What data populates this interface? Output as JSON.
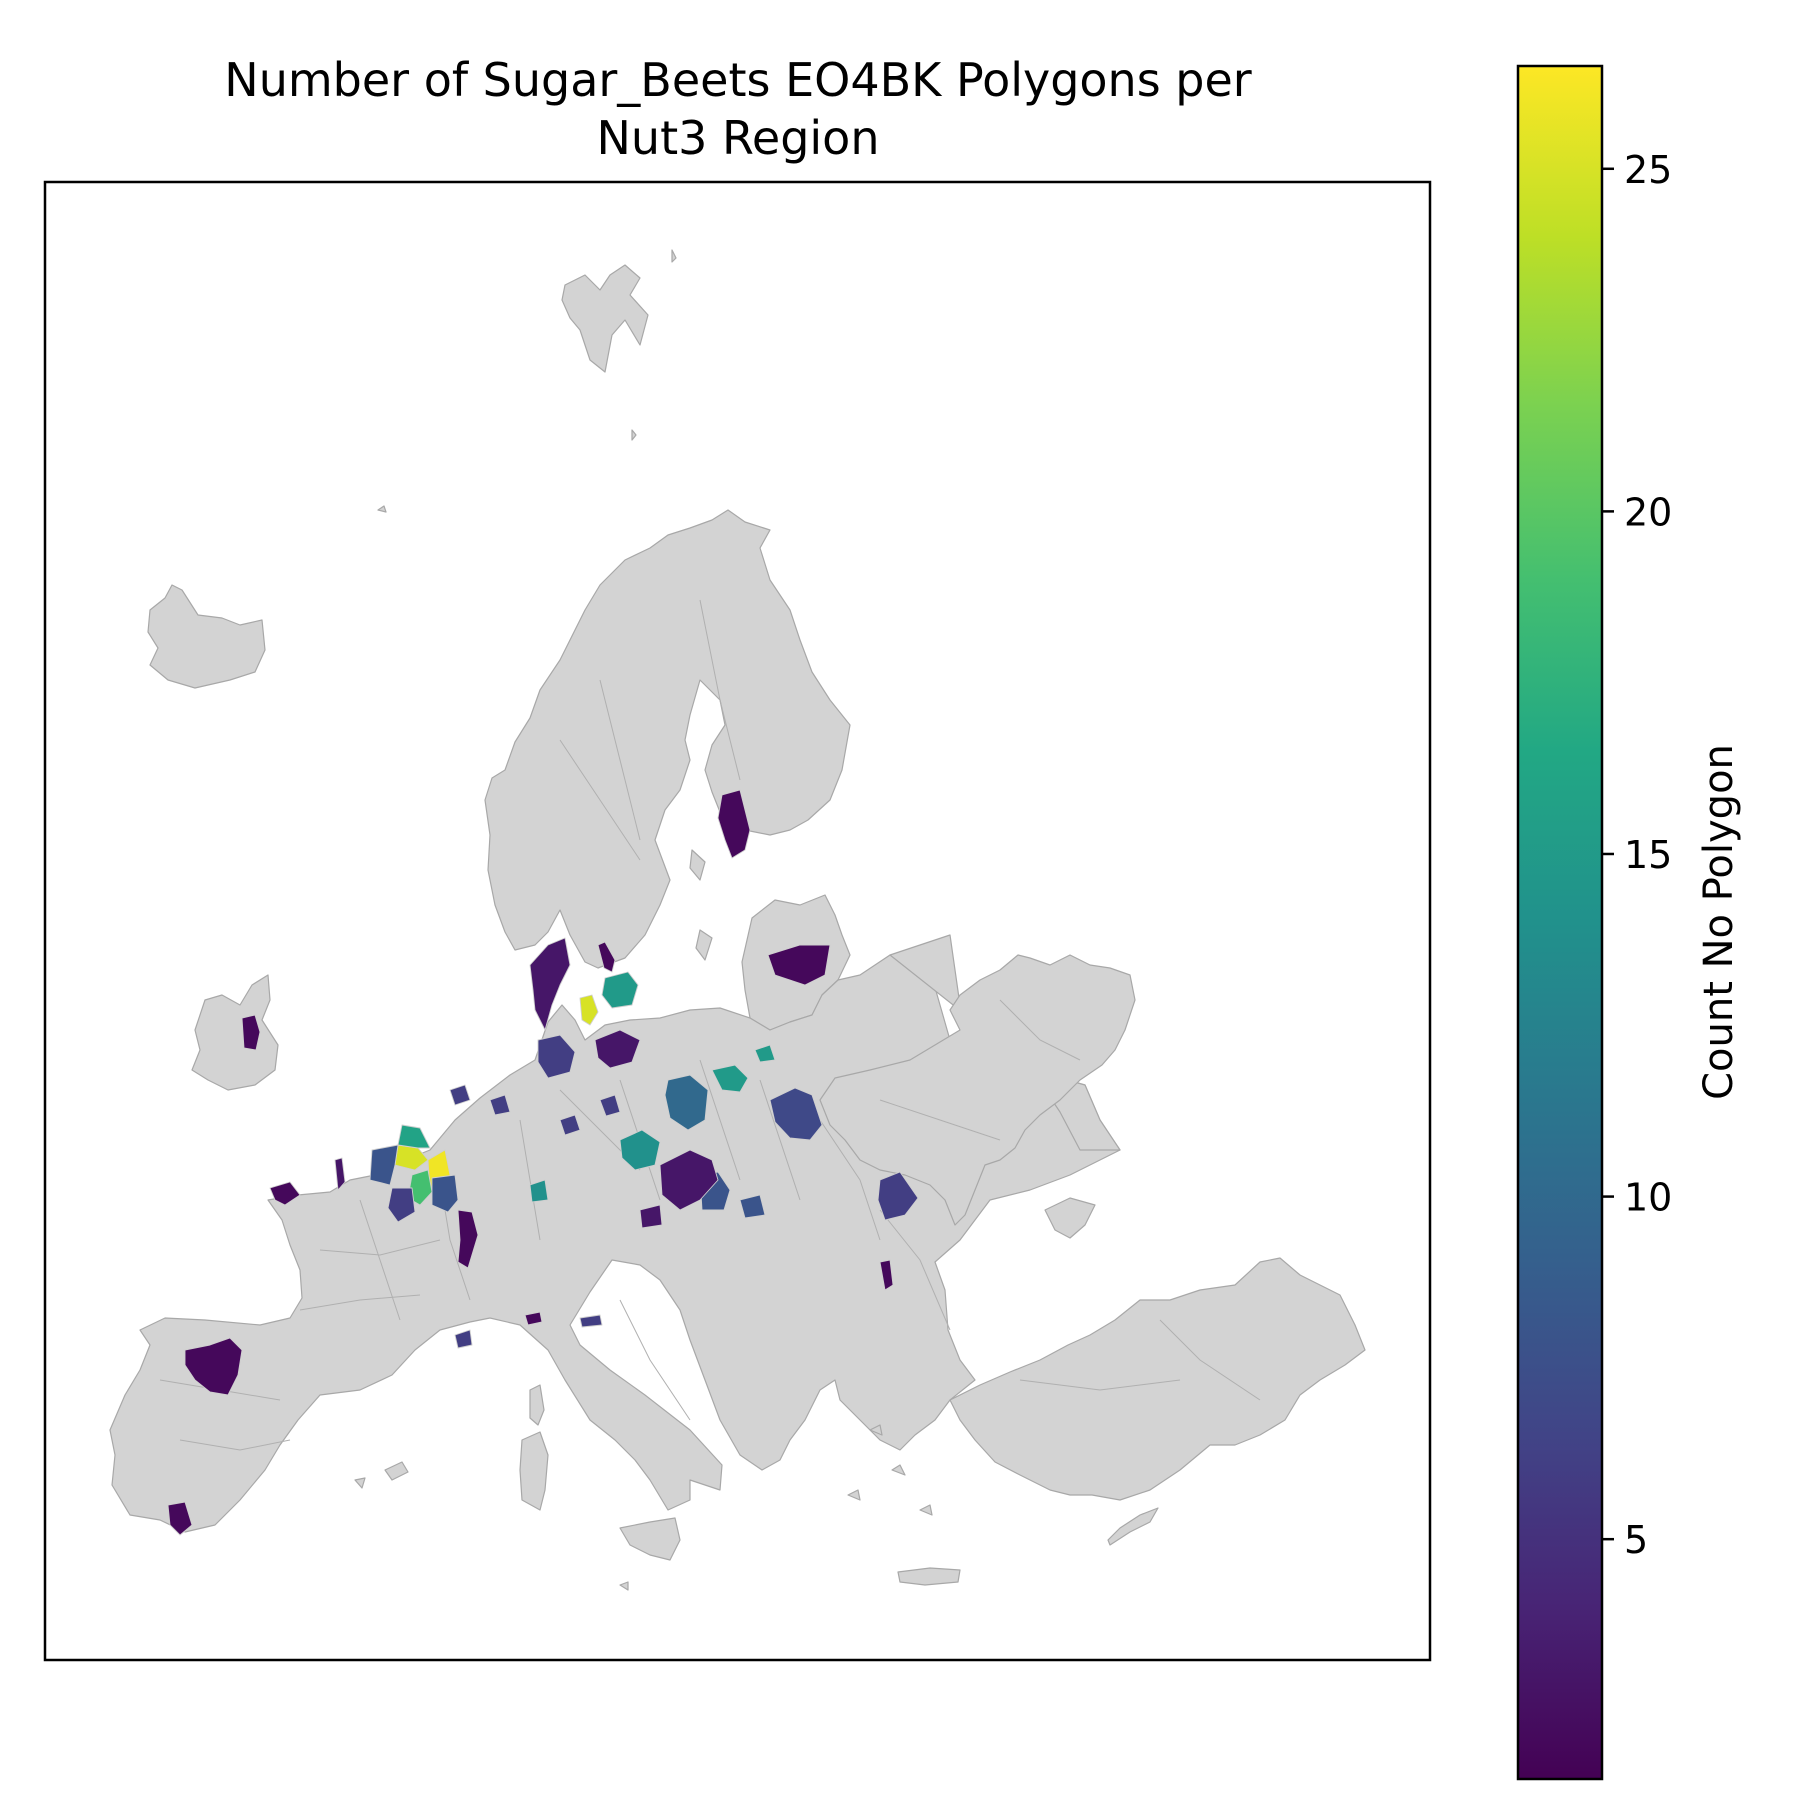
{
  "title_line1": "Number of Sugar_Beets EO4BK Polygons per",
  "title_line2": "Nut3 Region",
  "colorbar": {
    "label": "Count No Polygon",
    "colormap": "viridis",
    "min": 1.5,
    "max": 26.5,
    "ticks": [
      5,
      10,
      15,
      20,
      25
    ],
    "tick_labels": [
      "5",
      "10",
      "15",
      "20",
      "25"
    ]
  },
  "colors": {
    "no_data": "#d3d3d3",
    "viridis_low": "#440154",
    "viridis_high": "#fde725"
  },
  "map_data": {
    "type": "choropleth",
    "value_name": "polygon count",
    "regions": [
      {
        "name": "Finland south-west",
        "value": 2
      },
      {
        "name": "Sweden Skane",
        "value": 15
      },
      {
        "name": "Sweden Halland",
        "value": 2
      },
      {
        "name": "Denmark Lolland",
        "value": 25
      },
      {
        "name": "Denmark Jutland",
        "value": 3
      },
      {
        "name": "Lithuania",
        "value": 2
      },
      {
        "name": "Ireland",
        "value": 2
      },
      {
        "name": "France Aisne",
        "value": 25
      },
      {
        "name": "France Somme",
        "value": 16
      },
      {
        "name": "France Marne",
        "value": 26
      },
      {
        "name": "France Oise",
        "value": 8
      },
      {
        "name": "France Seine-et-Marne",
        "value": 19
      },
      {
        "name": "France Aube",
        "value": 8
      },
      {
        "name": "France Loiret",
        "value": 6
      },
      {
        "name": "France Eure",
        "value": 2
      },
      {
        "name": "France Calvados",
        "value": 3
      },
      {
        "name": "France Yonne",
        "value": 2
      },
      {
        "name": "Germany Lower Saxony",
        "value": 6
      },
      {
        "name": "Germany Saxony-Anhalt",
        "value": 3
      },
      {
        "name": "Poland Kujawy",
        "value": 15
      },
      {
        "name": "Poland Wielkopolska",
        "value": 10
      },
      {
        "name": "Poland Lublin",
        "value": 7
      },
      {
        "name": "Poland Silesia",
        "value": 14
      },
      {
        "name": "Czechia Moravia",
        "value": 8
      },
      {
        "name": "Poland Lodz",
        "value": 3
      },
      {
        "name": "Romania",
        "value": 6
      },
      {
        "name": "Serbia",
        "value": 2
      },
      {
        "name": "Spain Castilla y Leon",
        "value": 2
      },
      {
        "name": "Spain Andalusia",
        "value": 2
      },
      {
        "name": "Italy",
        "value": 2
      }
    ]
  }
}
